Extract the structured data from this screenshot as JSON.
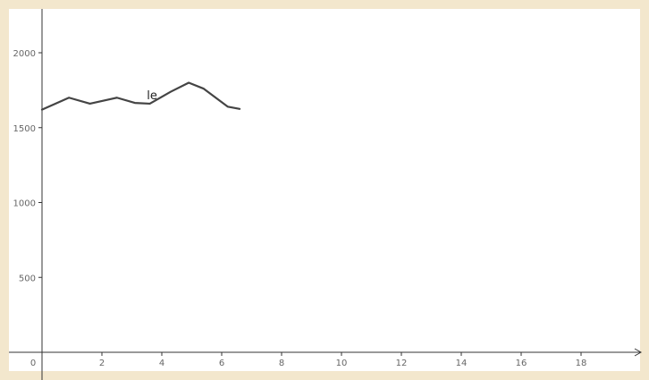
{
  "chart_data": {
    "type": "line",
    "title": "",
    "xlabel": "",
    "ylabel": "",
    "xlim": [
      0,
      20
    ],
    "ylim": [
      -100,
      2300
    ],
    "x_ticks": [
      0,
      2,
      4,
      6,
      8,
      10,
      12,
      14,
      16,
      18
    ],
    "y_ticks": [
      500,
      1000,
      1500,
      2000
    ],
    "grid": false,
    "series": [
      {
        "name": "le",
        "color": "#444444",
        "x": [
          0,
          0.9,
          1.6,
          2.5,
          3.1,
          3.6,
          4.3,
          4.9,
          5.4,
          6.2,
          6.6
        ],
        "y": [
          1620,
          1700,
          1660,
          1700,
          1665,
          1660,
          1740,
          1800,
          1760,
          1640,
          1625
        ]
      }
    ],
    "series_label": {
      "text": "le",
      "x": 3.5,
      "y": 1690
    }
  },
  "colors": {
    "background": "#f3e7cd",
    "plot_area": "#ffffff",
    "axis": "#333333",
    "tick_text": "#666666"
  }
}
